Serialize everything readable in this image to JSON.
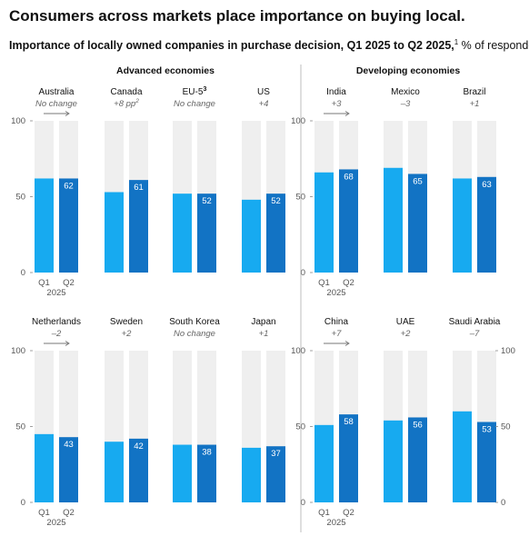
{
  "title": "Consumers across markets place importance on buying local.",
  "subtitle": {
    "main": "Importance of locally owned companies in purchase decision, Q1 2025 to Q2 2025,",
    "footnote": "1",
    "unit": " % of respondents"
  },
  "groups": {
    "advanced": "Advanced economies",
    "developing": "Developing economies"
  },
  "colors": {
    "q1": "#17aaf0",
    "q2": "#1273c4",
    "background_bar": "#efefef",
    "axis": "#888888"
  },
  "chart_data": {
    "type": "bar",
    "ylim": [
      0,
      100
    ],
    "yticks": [
      0,
      50,
      100
    ],
    "categories": [
      "Q1",
      "Q2"
    ],
    "year_label": "2025",
    "panels": [
      {
        "name": "Australia",
        "sup": "",
        "change": "No change",
        "change_italic": true,
        "change_sup": "",
        "q1": 62,
        "q2": 62,
        "group": "advanced",
        "row": 0,
        "col": 0,
        "arrow": true
      },
      {
        "name": "Canada",
        "sup": "",
        "change": "+8 pp",
        "change_italic": true,
        "change_sup": "2",
        "q1": 53,
        "q2": 61,
        "group": "advanced",
        "row": 0,
        "col": 1,
        "arrow": false
      },
      {
        "name": "EU-5",
        "sup": "3",
        "change": "No change",
        "change_italic": true,
        "change_sup": "",
        "q1": 52,
        "q2": 52,
        "group": "advanced",
        "row": 0,
        "col": 2,
        "arrow": false
      },
      {
        "name": "US",
        "sup": "",
        "change": "+4",
        "change_italic": true,
        "change_sup": "",
        "q1": 48,
        "q2": 52,
        "group": "advanced",
        "row": 0,
        "col": 3,
        "arrow": false
      },
      {
        "name": "India",
        "sup": "",
        "change": "+3",
        "change_italic": true,
        "change_sup": "",
        "q1": 66,
        "q2": 68,
        "group": "developing",
        "row": 0,
        "col": 4,
        "arrow": true
      },
      {
        "name": "Mexico",
        "sup": "",
        "change": "–3",
        "change_italic": true,
        "change_sup": "",
        "q1": 69,
        "q2": 65,
        "group": "developing",
        "row": 0,
        "col": 5,
        "arrow": false
      },
      {
        "name": "Brazil",
        "sup": "",
        "change": "+1",
        "change_italic": true,
        "change_sup": "",
        "q1": 62,
        "q2": 63,
        "group": "developing",
        "row": 0,
        "col": 6,
        "arrow": false
      },
      {
        "name": "Netherlands",
        "sup": "",
        "change": "–2",
        "change_italic": true,
        "change_sup": "",
        "q1": 45,
        "q2": 43,
        "group": "advanced",
        "row": 1,
        "col": 0,
        "arrow": true
      },
      {
        "name": "Sweden",
        "sup": "",
        "change": "+2",
        "change_italic": true,
        "change_sup": "",
        "q1": 40,
        "q2": 42,
        "group": "advanced",
        "row": 1,
        "col": 1,
        "arrow": false
      },
      {
        "name": "South Korea",
        "sup": "",
        "change": "No change",
        "change_italic": true,
        "change_sup": "",
        "q1": 38,
        "q2": 38,
        "group": "advanced",
        "row": 1,
        "col": 2,
        "arrow": false
      },
      {
        "name": "Japan",
        "sup": "",
        "change": "+1",
        "change_italic": true,
        "change_sup": "",
        "q1": 36,
        "q2": 37,
        "group": "advanced",
        "row": 1,
        "col": 3,
        "arrow": false
      },
      {
        "name": "China",
        "sup": "",
        "change": "+7",
        "change_italic": true,
        "change_sup": "",
        "q1": 51,
        "q2": 58,
        "group": "developing",
        "row": 1,
        "col": 4,
        "arrow": true
      },
      {
        "name": "UAE",
        "sup": "",
        "change": "+2",
        "change_italic": true,
        "change_sup": "",
        "q1": 54,
        "q2": 56,
        "group": "developing",
        "row": 1,
        "col": 5,
        "arrow": false
      },
      {
        "name": "Saudi Arabia",
        "sup": "",
        "change": "–7",
        "change_italic": true,
        "change_sup": "",
        "q1": 60,
        "q2": 53,
        "group": "developing",
        "row": 1,
        "col": 6,
        "arrow": false
      }
    ]
  }
}
